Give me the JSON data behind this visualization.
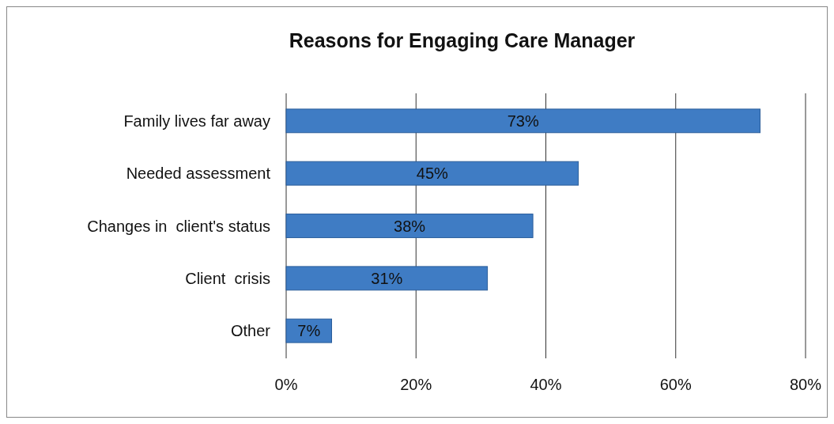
{
  "chart_data": {
    "type": "bar",
    "orientation": "horizontal",
    "title": "Reasons for Engaging Care Manager",
    "categories": [
      "Family lives far away",
      "Needed assessment",
      "Changes in  client's status",
      "Client  crisis",
      "Other"
    ],
    "values": [
      73,
      45,
      38,
      31,
      7
    ],
    "value_labels": [
      "73%",
      "45%",
      "38%",
      "31%",
      "7%"
    ],
    "color": "#3f7cc4",
    "xlim": [
      0,
      80
    ],
    "xticks": [
      {
        "value": 0,
        "label": "0%"
      },
      {
        "value": 20,
        "label": "20%"
      },
      {
        "value": 40,
        "label": "40%"
      },
      {
        "value": 60,
        "label": "60%"
      },
      {
        "value": 80,
        "label": "80%"
      }
    ],
    "grid": "x"
  }
}
